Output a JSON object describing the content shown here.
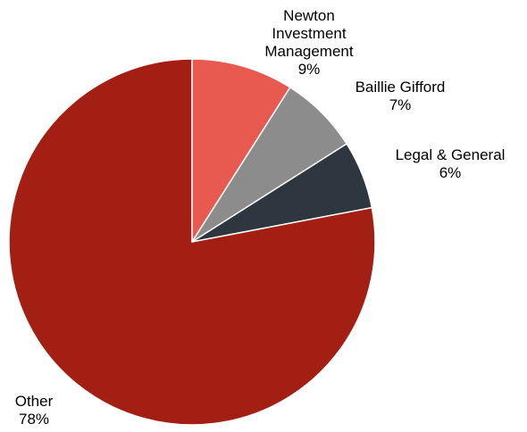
{
  "chart_data": {
    "type": "pie",
    "title": "",
    "slices": [
      {
        "label": [
          "Newton",
          "Investment",
          "Management"
        ],
        "value": 9,
        "display": "9%",
        "color": "#E85A4F"
      },
      {
        "label": [
          "Baillie Gifford"
        ],
        "value": 7,
        "display": "7%",
        "color": "#8C8C8C"
      },
      {
        "label": [
          "Legal & General"
        ],
        "value": 6,
        "display": "6%",
        "color": "#2E3640"
      },
      {
        "label": [
          "Other"
        ],
        "value": 78,
        "display": "78%",
        "color": "#A41F13"
      }
    ],
    "start_angle_deg": 0,
    "direction": "clockwise",
    "legend": "none",
    "data_labels": "outside"
  }
}
